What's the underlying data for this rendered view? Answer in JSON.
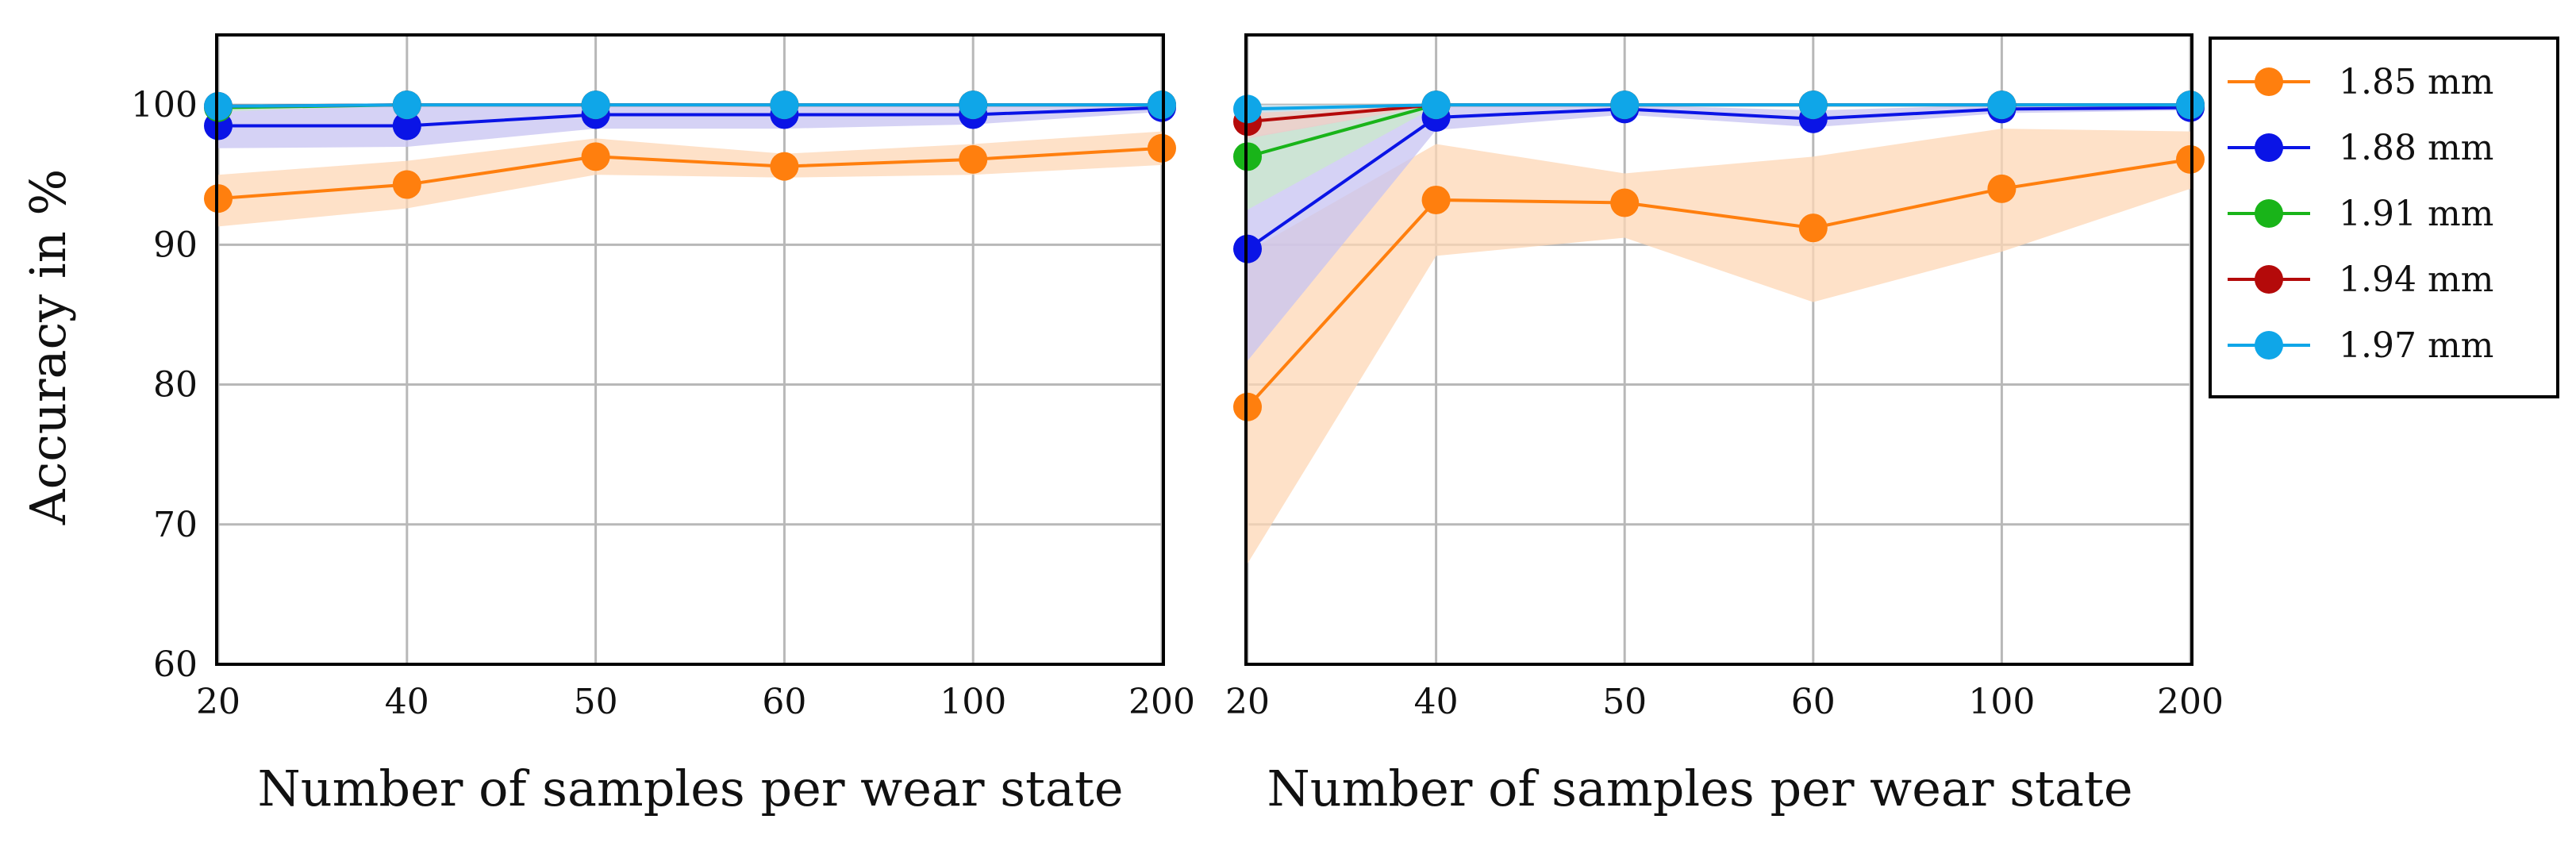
{
  "chart_data": [
    {
      "type": "line",
      "panel": "left",
      "categories": [
        "20",
        "40",
        "50",
        "60",
        "100",
        "200"
      ],
      "xlabel": "Number of samples per wear state",
      "ylabel": "Accuracy in %",
      "ylim": [
        60,
        105
      ],
      "yticks": [
        "60",
        "70",
        "80",
        "90",
        "100"
      ],
      "grid": true,
      "series": [
        {
          "name": "1.85 mm",
          "color": "#ff7f0e",
          "band_color": "#fdd7b6",
          "values": [
            93.3,
            94.3,
            96.3,
            95.6,
            96.1,
            96.9
          ],
          "lower": [
            91.3,
            92.6,
            95.0,
            94.8,
            95.0,
            95.7
          ],
          "upper": [
            95.0,
            96.0,
            97.6,
            96.5,
            97.2,
            98.1
          ]
        },
        {
          "name": "1.88 mm",
          "color": "#0a14e6",
          "band_color": "#c7c3f2",
          "values": [
            98.5,
            98.5,
            99.3,
            99.3,
            99.3,
            99.8
          ],
          "lower": [
            96.9,
            97.0,
            98.3,
            98.3,
            98.6,
            99.5
          ],
          "upper": [
            100.0,
            100.0,
            100.0,
            100.0,
            100.0,
            100.0
          ]
        },
        {
          "name": "1.91 mm",
          "color": "#19b419",
          "band_color": "#c9e9c9",
          "values": [
            99.8,
            100.0,
            100.0,
            100.0,
            100.0,
            100.0
          ],
          "lower": [
            99.5,
            100.0,
            100.0,
            100.0,
            100.0,
            100.0
          ],
          "upper": [
            100.0,
            100.0,
            100.0,
            100.0,
            100.0,
            100.0
          ]
        },
        {
          "name": "1.94 mm",
          "color": "#b40a0a",
          "band_color": "#f0c8c8",
          "values": [
            99.9,
            100.0,
            100.0,
            100.0,
            100.0,
            100.0
          ],
          "lower": [
            99.8,
            100.0,
            100.0,
            100.0,
            100.0,
            100.0
          ],
          "upper": [
            100.0,
            100.0,
            100.0,
            100.0,
            100.0,
            100.0
          ]
        },
        {
          "name": "1.97 mm",
          "color": "#0fa6e8",
          "band_color": "#c2e6f7",
          "values": [
            99.9,
            100.0,
            100.0,
            100.0,
            100.0,
            100.0
          ],
          "lower": [
            99.8,
            100.0,
            100.0,
            100.0,
            100.0,
            100.0
          ],
          "upper": [
            100.0,
            100.0,
            100.0,
            100.0,
            100.0,
            100.0
          ]
        }
      ]
    },
    {
      "type": "line",
      "panel": "right",
      "categories": [
        "20",
        "40",
        "50",
        "60",
        "100",
        "200"
      ],
      "xlabel": "Number of samples per wear state",
      "ylabel": "",
      "ylim": [
        60,
        105
      ],
      "grid": true,
      "series": [
        {
          "name": "1.85 mm",
          "color": "#ff7f0e",
          "band_color": "#fdd7b6",
          "values": [
            78.4,
            93.2,
            93.0,
            91.2,
            94.0,
            96.1
          ],
          "lower": [
            67.2,
            89.2,
            90.5,
            85.9,
            89.5,
            94.0
          ],
          "upper": [
            89.5,
            97.2,
            95.1,
            96.3,
            98.3,
            98.1
          ]
        },
        {
          "name": "1.88 mm",
          "color": "#0a14e6",
          "band_color": "#c7c3f2",
          "values": [
            89.7,
            99.1,
            99.7,
            99.0,
            99.7,
            99.8
          ],
          "lower": [
            81.7,
            98.2,
            99.3,
            98.4,
            99.4,
            99.6
          ],
          "upper": [
            97.7,
            100.0,
            100.0,
            99.6,
            100.0,
            100.0
          ]
        },
        {
          "name": "1.91 mm",
          "color": "#19b419",
          "band_color": "#c9e9c9",
          "values": [
            96.3,
            100.0,
            100.0,
            100.0,
            100.0,
            100.0
          ],
          "lower": [
            92.5,
            99.9,
            100.0,
            100.0,
            100.0,
            100.0
          ],
          "upper": [
            100.0,
            100.0,
            100.0,
            100.0,
            100.0,
            100.0
          ]
        },
        {
          "name": "1.94 mm",
          "color": "#b40a0a",
          "band_color": "#f0c8c8",
          "values": [
            98.8,
            100.0,
            100.0,
            100.0,
            100.0,
            100.0
          ],
          "lower": [
            97.6,
            100.0,
            100.0,
            100.0,
            100.0,
            100.0
          ],
          "upper": [
            100.0,
            100.0,
            100.0,
            100.0,
            100.0,
            100.0
          ]
        },
        {
          "name": "1.97 mm",
          "color": "#0fa6e8",
          "band_color": "#c2e6f7",
          "values": [
            99.7,
            100.0,
            100.0,
            100.0,
            100.0,
            100.0
          ],
          "lower": [
            99.4,
            100.0,
            100.0,
            100.0,
            100.0,
            100.0
          ],
          "upper": [
            100.0,
            100.0,
            100.0,
            100.0,
            100.0,
            100.0
          ]
        }
      ]
    }
  ],
  "legend": {
    "placement": "right",
    "items": [
      {
        "label": "1.85 mm",
        "color": "#ff7f0e"
      },
      {
        "label": "1.88 mm",
        "color": "#0a14e6"
      },
      {
        "label": "1.91 mm",
        "color": "#19b419"
      },
      {
        "label": "1.94 mm",
        "color": "#b40a0a"
      },
      {
        "label": "1.97 mm",
        "color": "#0fa6e8"
      }
    ]
  }
}
